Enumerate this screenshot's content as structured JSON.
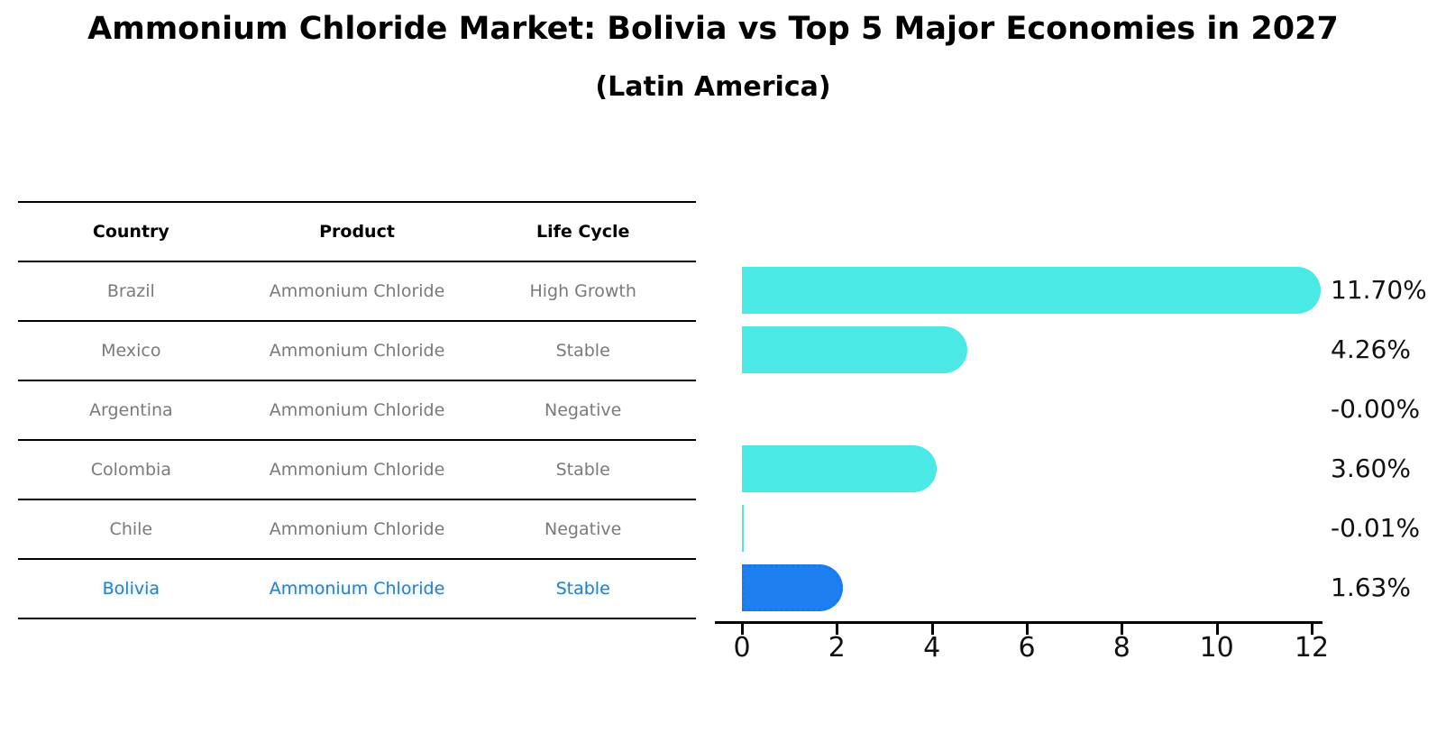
{
  "header": {
    "title": "Ammonium Chloride Market: Bolivia vs Top 5 Major Economies in 2027",
    "subtitle": "(Latin America)"
  },
  "table": {
    "headers": [
      "Country",
      "Product",
      "Life Cycle"
    ],
    "rows": [
      [
        "Brazil",
        "Ammonium Chloride",
        "High Growth"
      ],
      [
        "Mexico",
        "Ammonium Chloride",
        "Stable"
      ],
      [
        "Argentina",
        "Ammonium Chloride",
        "Negative"
      ],
      [
        "Colombia",
        "Ammonium Chloride",
        "Stable"
      ],
      [
        "Chile",
        "Ammonium Chloride",
        "Negative"
      ],
      [
        "Bolivia",
        "Ammonium Chloride",
        "Stable"
      ]
    ],
    "highlight_row_index": 5
  },
  "chart_data": {
    "type": "bar",
    "orientation": "horizontal",
    "title": "Ammonium Chloride Market: Bolivia vs Top 5 Major Economies in 2027",
    "subtitle": "(Latin America)",
    "categories": [
      "Brazil",
      "Mexico",
      "Argentina",
      "Colombia",
      "Chile",
      "Bolivia"
    ],
    "values": [
      11.7,
      4.26,
      -0.0,
      3.6,
      -0.01,
      1.63
    ],
    "value_labels": [
      "11.70%",
      "4.26%",
      "-0.00%",
      "3.60%",
      "-0.01%",
      "1.63%"
    ],
    "xlabel": "",
    "ylabel": "",
    "xlim": [
      0,
      12
    ],
    "x_ticks": [
      0,
      2,
      4,
      6,
      8,
      10,
      12
    ],
    "grid": false,
    "legend": "none",
    "colors": {
      "bar": "#4ae9e6",
      "highlight_bar": "#1e80f0",
      "highlight_text": "#2e7ec0",
      "table_text": "#7a7a7a",
      "axis_text": "#111111"
    },
    "highlight_index": 5
  }
}
